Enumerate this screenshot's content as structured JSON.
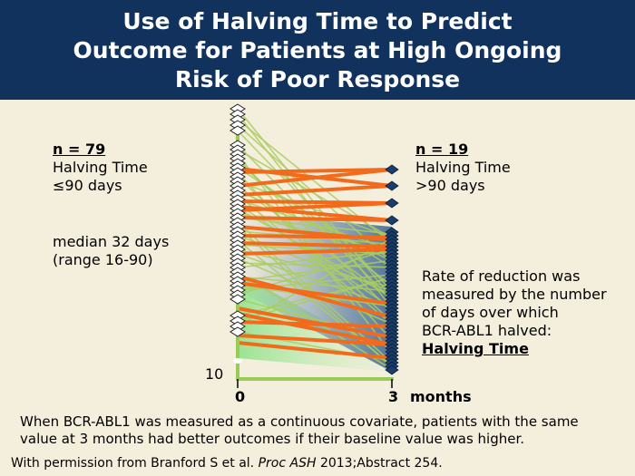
{
  "title": {
    "line1": "Use of Halving Time to Predict",
    "line2": "Outcome for Patients at High Ongoing",
    "line3": "Risk of Poor Response"
  },
  "left_group": {
    "n_label": "n = 79",
    "line1": "Halving Time",
    "line2": "≤90 days",
    "median_line1": "median 32 days",
    "median_line2": "(range 16-90)"
  },
  "right_group": {
    "n_label": "n = 19",
    "line1": "Halving Time",
    "line2": ">90 days"
  },
  "explanation": {
    "line1": "Rate of reduction was",
    "line2": "measured by the number",
    "line3": "of days over which",
    "line4": "BCR-ABL1 halved:",
    "term": "Halving Time"
  },
  "axis": {
    "y_tick": "10",
    "x_tick_0": "0",
    "x_tick_3": "3",
    "x_unit": "months"
  },
  "footer": {
    "line1": "When BCR-ABL1 was measured as a continuous covariate, patients with the same",
    "line2": "value at 3 months had better outcomes if their baseline value was higher.",
    "citation_prefix": "With permission from Branford S et al.",
    "citation_journal": "Proc ASH",
    "citation_suffix": "2013;Abstract 254."
  },
  "colors": {
    "title_bg": "#12325e",
    "background": "#f4eedc",
    "green_lines": "#a9cc62",
    "orange_lines": "#f26a1b",
    "right_markers": "#1a3d6b",
    "axis": "#9acb55"
  }
}
